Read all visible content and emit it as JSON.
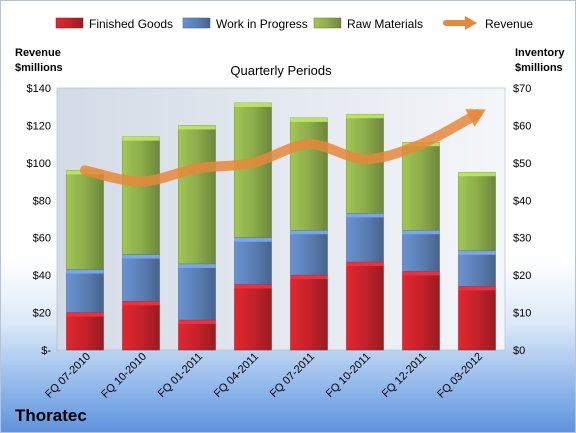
{
  "chart_data": {
    "type": "bar",
    "stacked": true,
    "subtitle": "Quarterly Periods",
    "company": "Thoratec",
    "categories": [
      "FQ 07-2010",
      "FQ 10-2010",
      "FQ 01-2011",
      "FQ 04-2011",
      "FQ 07-2011",
      "FQ 10-2011",
      "FQ 12-2011",
      "FQ 03-2012"
    ],
    "series": [
      {
        "name": "Finished Goods",
        "color": "#c4222a",
        "values": [
          10,
          13,
          8,
          17.5,
          20,
          23.5,
          21,
          17
        ]
      },
      {
        "name": "Work in Progress",
        "color": "#5b7fb5",
        "values": [
          11.5,
          12.5,
          15,
          12.5,
          12,
          13,
          11,
          9.5
        ]
      },
      {
        "name": "Raw Materials",
        "color": "#8cad4a",
        "values": [
          26.5,
          31.5,
          37,
          36,
          30,
          26.5,
          23.5,
          21
        ]
      }
    ],
    "line": {
      "name": "Revenue",
      "color": "#e8873a",
      "values": [
        96,
        90,
        97,
        100,
        110,
        102,
        110,
        126
      ]
    },
    "left_axis": {
      "title": [
        "Revenue",
        "$millions"
      ],
      "ylim": [
        0,
        140
      ],
      "ticks": [
        "$-",
        "$20",
        "$40",
        "$60",
        "$80",
        "$100",
        "$120",
        "$140"
      ]
    },
    "right_axis": {
      "title": [
        "Inventory",
        "$millions"
      ],
      "ylim": [
        0,
        70
      ],
      "ticks": [
        "$0",
        "$10",
        "$20",
        "$30",
        "$40",
        "$50",
        "$60",
        "$70"
      ]
    },
    "legend": {
      "position": "top"
    },
    "grid": false
  }
}
